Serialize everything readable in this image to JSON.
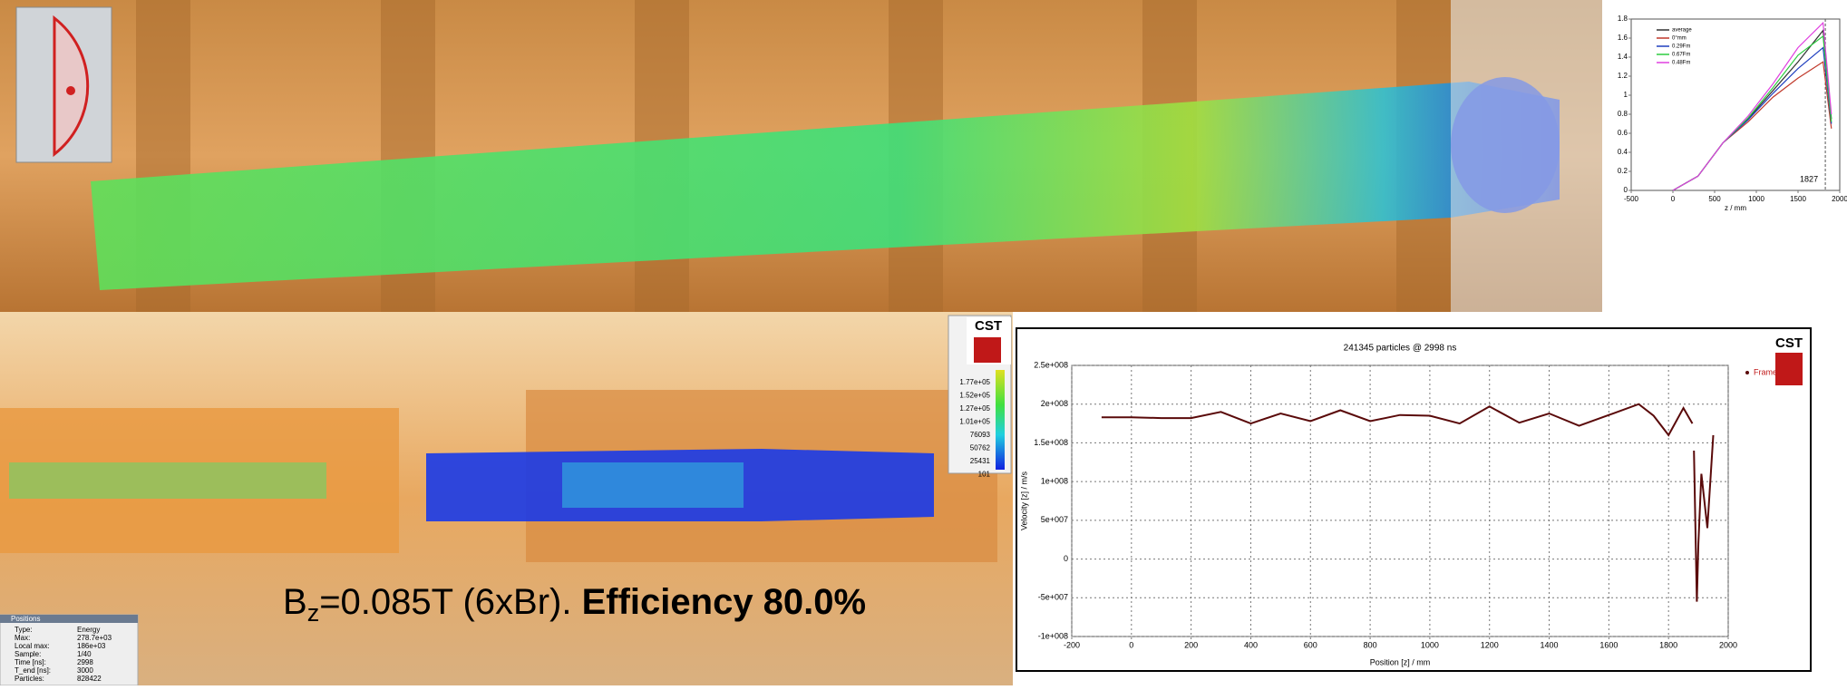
{
  "chart_data": [
    {
      "type": "line",
      "title": "241345 particles @ 2998 ns",
      "logo": "CST",
      "x_label": "Position [z]  / mm",
      "y_label": "Velocity [z]  / m/s",
      "xlim": [
        -200,
        2000
      ],
      "ylim": [
        -100000000,
        250000000
      ],
      "xticks": [
        -200,
        0,
        200,
        400,
        600,
        800,
        1000,
        1200,
        1400,
        1600,
        1800,
        2000
      ],
      "yticks": [
        {
          "value": -100000000,
          "label": "-1e+008"
        },
        {
          "value": -50000000,
          "label": "-5e+007"
        },
        {
          "value": 0,
          "label": "0"
        },
        {
          "value": 50000000,
          "label": "5e+007"
        },
        {
          "value": 100000000,
          "label": "1e+008"
        },
        {
          "value": 150000000,
          "label": "1.5e+008"
        },
        {
          "value": 200000000,
          "label": "2e+008"
        },
        {
          "value": 250000000,
          "label": "2.5e+008"
        }
      ],
      "grid": true,
      "legend": "top-right",
      "series": [
        {
          "name": "Frame",
          "color": "#5a0a0a",
          "x": [
            -100,
            0,
            100,
            200,
            300,
            400,
            500,
            600,
            700,
            800,
            900,
            1000,
            1100,
            1200,
            1300,
            1400,
            1500,
            1600,
            1700,
            1750,
            1800,
            1850,
            1880,
            null,
            1885,
            1895,
            1900,
            1910,
            1930,
            1950
          ],
          "values": [
            183000000,
            183000000,
            182000000,
            182000000,
            190000000,
            175000000,
            188000000,
            178000000,
            192000000,
            178000000,
            186000000,
            185000000,
            175000000,
            197000000,
            176000000,
            188000000,
            172000000,
            186000000,
            200000000,
            185000000,
            160000000,
            195000000,
            175000000,
            null,
            140000000,
            -55000000,
            20000000,
            110000000,
            40000000,
            160000000
          ]
        }
      ]
    },
    {
      "type": "line",
      "x_label": "z / mm",
      "annotation": "1827",
      "annotation_x": 1827,
      "xlim": [
        -500,
        2000
      ],
      "ylim": [
        0,
        1.8
      ],
      "xticks": [
        -500,
        0,
        500,
        1000,
        1500,
        2000
      ],
      "yticks": [
        0,
        0.2,
        0.4,
        0.6,
        0.8,
        1,
        1.2,
        1.4,
        1.6,
        1.8
      ],
      "grid": false,
      "legend": "top-left",
      "series": [
        {
          "name": "average",
          "color": "#333333",
          "x": [
            0,
            300,
            600,
            900,
            1200,
            1500,
            1800,
            1900
          ],
          "values": [
            0,
            0.15,
            0.5,
            0.75,
            1.05,
            1.35,
            1.68,
            0.75
          ]
        },
        {
          "name": "0°mm",
          "color": "#c0392b",
          "x": [
            0,
            300,
            600,
            900,
            1200,
            1500,
            1800,
            1900
          ],
          "values": [
            0,
            0.15,
            0.5,
            0.72,
            0.98,
            1.18,
            1.35,
            0.65
          ]
        },
        {
          "name": "0.29Fm",
          "color": "#1f3fbf",
          "x": [
            0,
            300,
            600,
            900,
            1200,
            1500,
            1800,
            1900
          ],
          "values": [
            0,
            0.15,
            0.5,
            0.74,
            1.02,
            1.28,
            1.5,
            0.7
          ]
        },
        {
          "name": "0.67Fm",
          "color": "#2ecc40",
          "x": [
            0,
            300,
            600,
            900,
            1200,
            1500,
            1800,
            1900
          ],
          "values": [
            0,
            0.15,
            0.5,
            0.76,
            1.08,
            1.42,
            1.62,
            0.72
          ]
        },
        {
          "name": "0.48Fm",
          "color": "#e040e0",
          "x": [
            0,
            300,
            600,
            900,
            1200,
            1500,
            1800,
            1900
          ],
          "values": [
            0,
            0.15,
            0.5,
            0.78,
            1.12,
            1.5,
            1.76,
            0.8
          ]
        }
      ]
    }
  ],
  "caption": {
    "symbol": "B",
    "subscript": "z",
    "text": "=0.085T (6xBr). ",
    "bold": "Efficiency 80.0%"
  },
  "colorbar": {
    "logo": "CST",
    "labels": [
      "1.77e+05",
      "1.52e+05",
      "1.27e+05",
      "1.01e+05",
      "76093",
      "50762",
      "25431",
      "101"
    ]
  },
  "positions_panel": {
    "title": "Positions",
    "rows": [
      [
        "Type:",
        "Energy"
      ],
      [
        "Max:",
        "278.7e+03"
      ],
      [
        "Local max:",
        "186e+03"
      ],
      [
        "Sample:",
        "1/40"
      ],
      [
        "Time [ns]:",
        "2998"
      ],
      [
        "T_end [ns]:",
        "3000"
      ],
      [
        "Particles:",
        "828422"
      ]
    ]
  }
}
